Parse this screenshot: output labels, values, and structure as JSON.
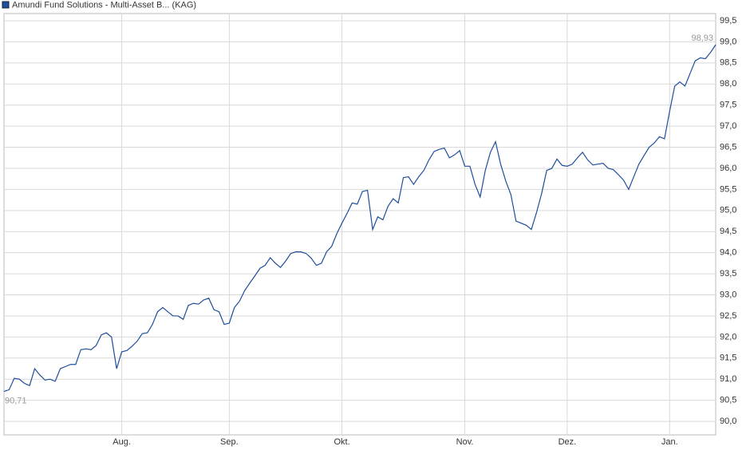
{
  "chart_data": {
    "type": "line",
    "series": [
      {
        "name": "Amundi Fund Solutions - Multi-Asset B... (KAG)",
        "color": "#1f4e9c",
        "values": [
          90.71,
          90.75,
          91.02,
          91.0,
          90.9,
          90.85,
          91.25,
          91.1,
          90.98,
          91.0,
          90.95,
          91.25,
          91.3,
          91.35,
          91.35,
          91.7,
          91.72,
          91.7,
          91.8,
          92.05,
          92.1,
          92.0,
          91.25,
          91.65,
          91.68,
          91.78,
          91.9,
          92.08,
          92.1,
          92.3,
          92.6,
          92.7,
          92.6,
          92.5,
          92.5,
          92.42,
          92.75,
          92.8,
          92.78,
          92.88,
          92.92,
          92.65,
          92.6,
          92.3,
          92.33,
          92.7,
          92.85,
          93.1,
          93.28,
          93.45,
          93.63,
          93.7,
          93.88,
          93.75,
          93.65,
          93.8,
          93.98,
          94.02,
          94.02,
          93.98,
          93.87,
          93.7,
          93.75,
          94.02,
          94.15,
          94.45,
          94.7,
          94.93,
          95.18,
          95.15,
          95.45,
          95.48,
          94.55,
          94.85,
          94.78,
          95.1,
          95.28,
          95.18,
          95.78,
          95.8,
          95.62,
          95.8,
          95.95,
          96.2,
          96.4,
          96.45,
          96.48,
          96.25,
          96.32,
          96.42,
          96.05,
          96.05,
          95.62,
          95.32,
          95.95,
          96.38,
          96.63,
          96.1,
          95.7,
          95.38,
          94.75,
          94.7,
          94.65,
          94.55,
          94.95,
          95.4,
          95.95,
          96.0,
          96.22,
          96.07,
          96.05,
          96.1,
          96.25,
          96.38,
          96.2,
          96.08,
          96.1,
          96.12,
          96.0,
          95.97,
          95.85,
          95.72,
          95.5,
          95.8,
          96.1,
          96.3,
          96.5,
          96.6,
          96.75,
          96.7,
          97.35,
          97.95,
          98.05,
          97.95,
          98.25,
          98.55,
          98.62,
          98.6,
          98.75,
          98.93
        ]
      }
    ],
    "categories": [
      null,
      null,
      null,
      null,
      null,
      null,
      null,
      null,
      null,
      null,
      null,
      null,
      null,
      null,
      null,
      null,
      null,
      null,
      null,
      null,
      null,
      null,
      null,
      "Aug.",
      null,
      null,
      null,
      null,
      null,
      null,
      null,
      null,
      null,
      null,
      null,
      null,
      null,
      null,
      null,
      null,
      null,
      null,
      null,
      null,
      "Sep.",
      null,
      null,
      null,
      null,
      null,
      null,
      null,
      null,
      null,
      null,
      null,
      null,
      null,
      null,
      null,
      null,
      null,
      null,
      null,
      null,
      null,
      "Okt.",
      null,
      null,
      null,
      null,
      null,
      null,
      null,
      null,
      null,
      null,
      null,
      null,
      null,
      null,
      null,
      null,
      null,
      null,
      null,
      null,
      null,
      null,
      null,
      "Nov.",
      null,
      null,
      null,
      null,
      null,
      null,
      null,
      null,
      null,
      null,
      null,
      null,
      null,
      null,
      null,
      null,
      null,
      null,
      null,
      "Dez.",
      null,
      null,
      null,
      null,
      null,
      null,
      null,
      null,
      null,
      null,
      null,
      null,
      null,
      null,
      null,
      null,
      null,
      null,
      null,
      "Jan.",
      null,
      null,
      null,
      null,
      null,
      null,
      null,
      null,
      null
    ],
    "start_label": "90,71",
    "end_label": "98,93",
    "ylim": [
      89.68,
      99.67
    ],
    "yticks": [
      {
        "value": 90.0,
        "label": "90,0"
      },
      {
        "value": 90.5,
        "label": "90,5"
      },
      {
        "value": 91.0,
        "label": "91,0"
      },
      {
        "value": 91.5,
        "label": "91,5"
      },
      {
        "value": 92.0,
        "label": "92,0"
      },
      {
        "value": 92.5,
        "label": "92,5"
      },
      {
        "value": 93.0,
        "label": "93,0"
      },
      {
        "value": 93.5,
        "label": "93,5"
      },
      {
        "value": 94.0,
        "label": "94,0"
      },
      {
        "value": 94.5,
        "label": "94,5"
      },
      {
        "value": 95.0,
        "label": "95,0"
      },
      {
        "value": 95.5,
        "label": "95,5"
      },
      {
        "value": 96.0,
        "label": "96,0"
      },
      {
        "value": 96.5,
        "label": "96,5"
      },
      {
        "value": 97.0,
        "label": "97,0"
      },
      {
        "value": 97.5,
        "label": "97,5"
      },
      {
        "value": 98.0,
        "label": "98,0"
      },
      {
        "value": 98.5,
        "label": "98,5"
      },
      {
        "value": 99.0,
        "label": "99,0"
      },
      {
        "value": 99.5,
        "label": "99,5"
      }
    ],
    "grid": true
  }
}
